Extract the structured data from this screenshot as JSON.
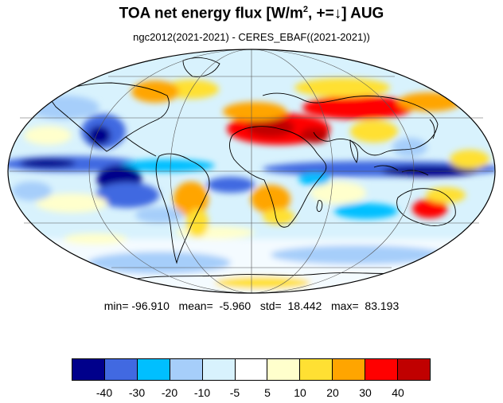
{
  "title": {
    "main": "TOA net energy flux  [W/m",
    "sup": "2",
    "rest": ", +=↓] AUG"
  },
  "subtitle": "ngc2012(2021-2021) - CERES_EBAF((2021-2021))",
  "stats": {
    "text": "min= -96.910   mean=  -5.960   std=  18.442   max=  83.193"
  },
  "colorbar": {
    "colors": [
      "#00008b",
      "#4169e1",
      "#00bfff",
      "#a6cefa",
      "#d8f2fd",
      "#ffffff",
      "#ffffcc",
      "#ffe033",
      "#ffa500",
      "#ff0000",
      "#c00000"
    ],
    "labels": [
      "-40",
      "-30",
      "-20",
      "-10",
      "-5",
      "5",
      "10",
      "20",
      "30",
      "40"
    ]
  },
  "map": {
    "projection": "Mollweide",
    "field": "TOA net energy flux difference",
    "continent_outline_color": "#000000"
  }
}
